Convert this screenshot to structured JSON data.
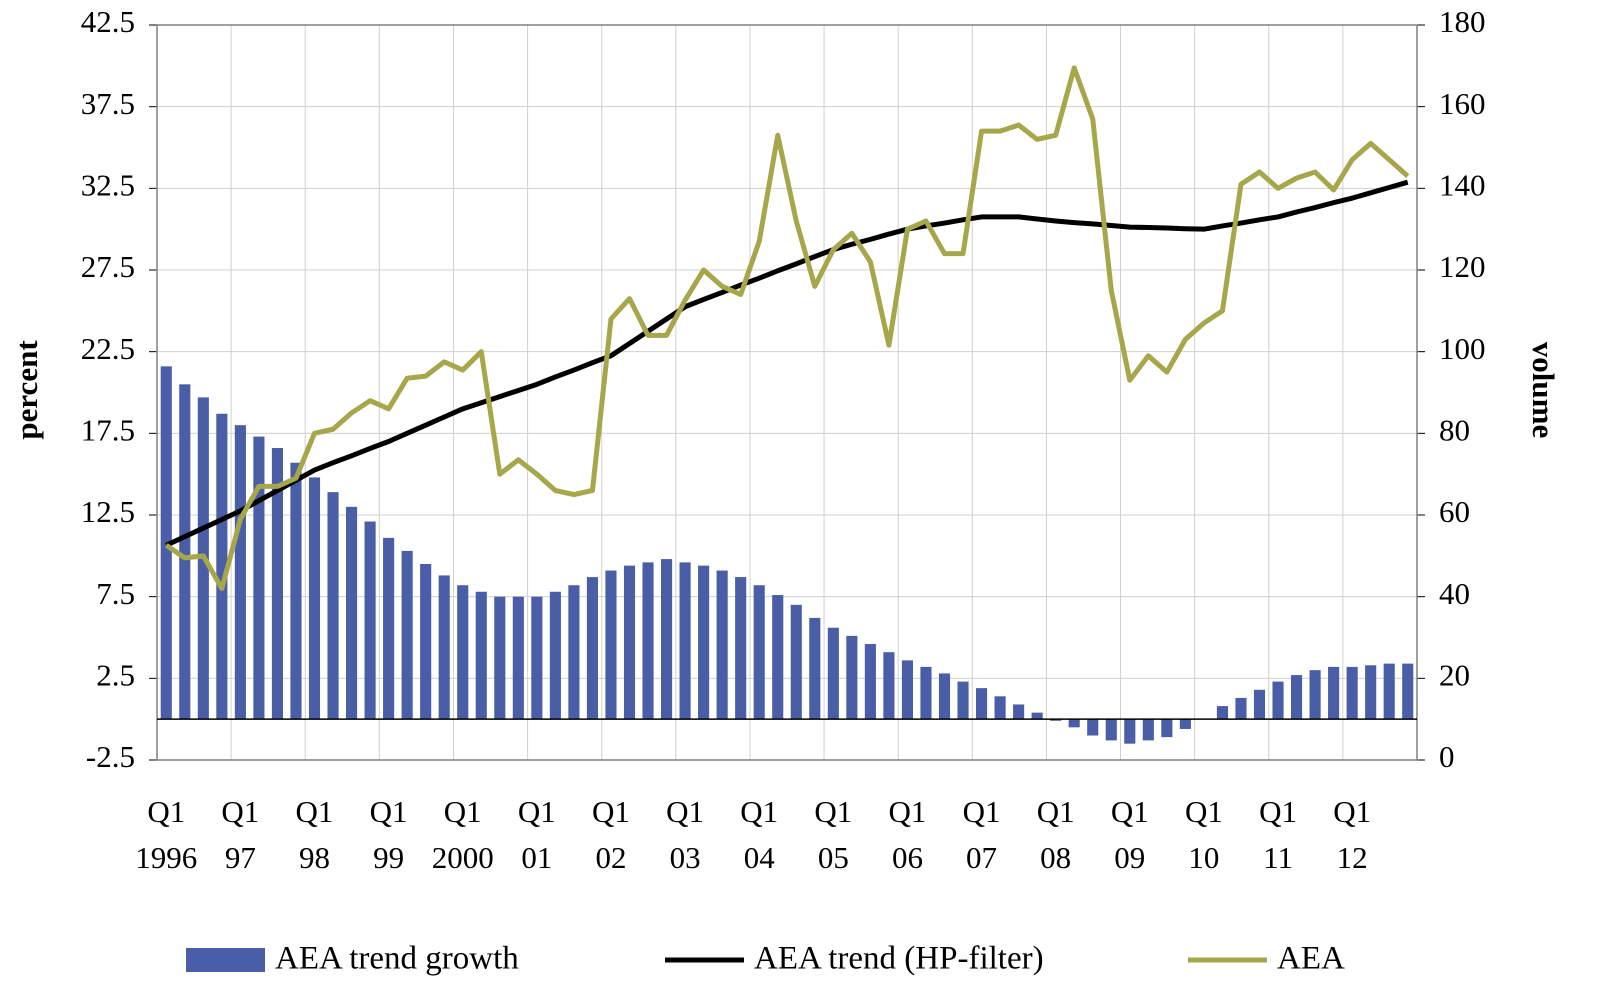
{
  "chart_data": {
    "type": "bar-line",
    "ylabel": "percent",
    "y2label": "volume",
    "categories": [
      [
        "Q1",
        "1996"
      ],
      null,
      null,
      null,
      [
        "Q1",
        "97"
      ],
      null,
      null,
      null,
      [
        "Q1",
        "98"
      ],
      null,
      null,
      null,
      [
        "Q1",
        "99"
      ],
      null,
      null,
      null,
      [
        "Q1",
        "2000"
      ],
      null,
      null,
      null,
      [
        "Q1",
        "01"
      ],
      null,
      null,
      null,
      [
        "Q1",
        "02"
      ],
      null,
      null,
      null,
      [
        "Q1",
        "03"
      ],
      null,
      null,
      null,
      [
        "Q1",
        "04"
      ],
      null,
      null,
      null,
      [
        "Q1",
        "05"
      ],
      null,
      null,
      null,
      [
        "Q1",
        "06"
      ],
      null,
      null,
      null,
      [
        "Q1",
        "07"
      ],
      null,
      null,
      null,
      [
        "Q1",
        "08"
      ],
      null,
      null,
      null,
      [
        "Q1",
        "09"
      ],
      null,
      null,
      null,
      [
        "Q1",
        "10"
      ],
      null,
      null,
      null,
      [
        "Q1",
        "11"
      ],
      null,
      null,
      null,
      [
        "Q1",
        "12"
      ],
      null,
      null,
      null
    ],
    "series": [
      {
        "name": "AEA trend growth",
        "type": "bar",
        "color": "#4a5ea8",
        "axis": "y",
        "values": [
          21.6,
          20.5,
          19.7,
          18.7,
          18.0,
          17.3,
          16.6,
          15.7,
          14.8,
          13.9,
          13.0,
          12.1,
          11.1,
          10.3,
          9.5,
          8.8,
          8.2,
          7.8,
          7.5,
          7.5,
          7.5,
          7.8,
          8.2,
          8.7,
          9.1,
          9.4,
          9.6,
          9.8,
          9.6,
          9.4,
          9.1,
          8.7,
          8.2,
          7.6,
          7.0,
          6.2,
          5.6,
          5.1,
          4.6,
          4.1,
          3.6,
          3.2,
          2.8,
          2.3,
          1.9,
          1.4,
          0.9,
          0.4,
          -0.1,
          -0.5,
          -1.0,
          -1.3,
          -1.5,
          -1.3,
          -1.1,
          -0.6,
          0,
          0.8,
          1.3,
          1.8,
          2.3,
          2.7,
          3.0,
          3.2,
          3.2,
          3.3,
          3.4,
          3.4
        ]
      },
      {
        "name": "AEA trend (HP-filter)",
        "type": "line",
        "color": "#000000",
        "axis": "y2",
        "values": [
          52.6,
          54.7,
          56.8,
          58.9,
          61,
          63.5,
          66,
          68.5,
          71,
          72.8,
          74.5,
          76.3,
          78,
          80,
          82,
          84,
          86,
          87.5,
          89,
          90.5,
          92,
          93.8,
          95.5,
          97.3,
          99,
          102,
          105,
          108,
          111,
          112.8,
          114.5,
          116.3,
          118,
          119.8,
          121.5,
          123.3,
          125,
          126.3,
          127.5,
          128.8,
          130,
          130.8,
          131.5,
          132.3,
          133,
          133,
          133,
          132.5,
          132,
          131.6,
          131.3,
          130.9,
          130.5,
          130.4,
          130.3,
          130.1,
          130,
          130.8,
          131.5,
          132.3,
          133,
          134.2,
          135.3,
          136.5,
          137.6,
          138.9,
          140.2,
          141.5
        ]
      },
      {
        "name": "AEA",
        "type": "line",
        "color": "#a6a64a",
        "axis": "y2",
        "values": [
          52.6,
          49.5,
          50,
          42,
          59,
          67,
          67,
          69,
          80,
          81,
          85,
          88,
          86,
          93.5,
          94,
          97.5,
          95.5,
          100,
          70,
          73.5,
          70,
          66,
          65,
          66,
          108,
          113,
          104,
          104,
          112.6,
          120,
          116,
          114,
          127,
          153,
          132,
          116,
          125,
          129,
          122,
          101.6,
          130,
          132,
          124,
          124,
          154,
          154,
          155.5,
          152,
          153,
          169.5,
          157,
          115,
          93,
          99,
          95,
          103,
          107,
          110,
          141,
          144,
          140,
          142.5,
          144,
          139.6,
          147,
          151,
          147,
          143
        ]
      }
    ],
    "ylim": [
      -2.5,
      42.5
    ],
    "yticks": [
      -2.5,
      2.5,
      7.5,
      12.5,
      17.5,
      22.5,
      27.5,
      32.5,
      37.5,
      42.5
    ],
    "y2lim": [
      0,
      180
    ],
    "y2ticks": [
      0,
      20,
      40,
      60,
      80,
      100,
      120,
      140,
      160,
      180
    ],
    "grid": true,
    "legend": "bottom"
  }
}
